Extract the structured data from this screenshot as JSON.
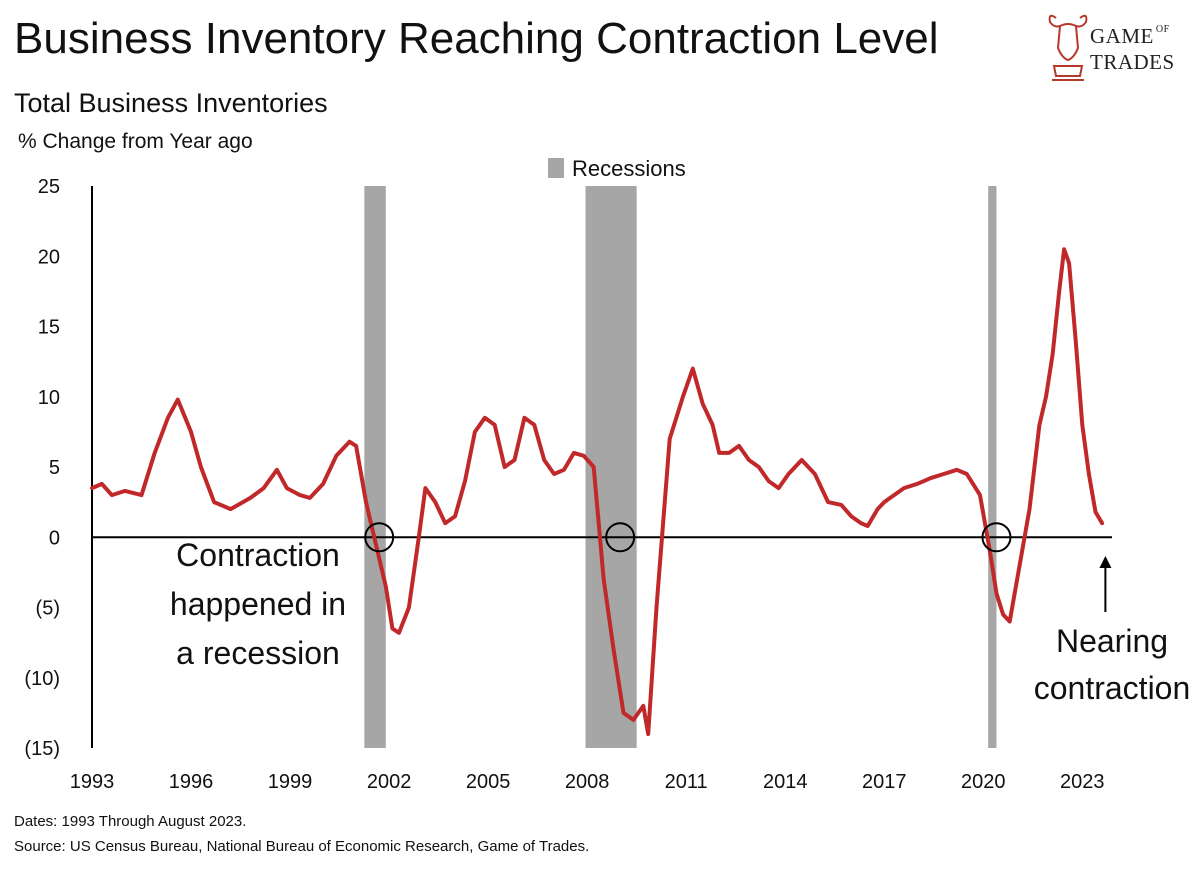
{
  "header": {
    "title": "Business Inventory Reaching Contraction Level",
    "subtitle": "Total Business Inventories",
    "y_unit_label": "% Change from Year ago"
  },
  "brand": {
    "line1": "GAME",
    "of": "OF",
    "line2": "TRADES",
    "color": "#b5382a"
  },
  "footer": {
    "dates": "Dates: 1993 Through August 2023.",
    "source": "Source: US Census Bureau, National Bureau of Economic Research, Game of Trades."
  },
  "colors": {
    "line": "#c0282a",
    "recession": "#a6a6a6",
    "axis": "#000000"
  },
  "chart_data": {
    "type": "line",
    "title": "Total Business Inventories",
    "ylabel": "% Change from Year ago",
    "xlabel": "",
    "xlim": [
      1993,
      2023.9
    ],
    "ylim": [
      -15,
      25
    ],
    "x_ticks": [
      1993,
      1996,
      1999,
      2002,
      2005,
      2008,
      2011,
      2014,
      2017,
      2020,
      2023
    ],
    "x_tick_labels": [
      "1993",
      "1996",
      "1999",
      "2002",
      "2005",
      "2008",
      "2011",
      "2014",
      "2017",
      "2020",
      "2023"
    ],
    "y_ticks": [
      25,
      20,
      15,
      10,
      5,
      0,
      -5,
      -10,
      -15
    ],
    "y_tick_labels": [
      "25",
      "20",
      "15",
      "10",
      "5",
      "0",
      "(5)",
      "(10)",
      "(15)"
    ],
    "legend": {
      "label": "Recessions",
      "position": "top-center"
    },
    "recessions": [
      {
        "start": 2001.25,
        "end": 2001.9
      },
      {
        "start": 2007.95,
        "end": 2009.5
      },
      {
        "start": 2020.15,
        "end": 2020.4
      }
    ],
    "series": [
      {
        "name": "Total Business Inventories % Change YoY",
        "x": [
          1993.0,
          1993.3,
          1993.6,
          1994.0,
          1994.5,
          1994.9,
          1995.3,
          1995.6,
          1996.0,
          1996.3,
          1996.7,
          1997.2,
          1997.8,
          1998.2,
          1998.6,
          1998.9,
          1999.3,
          1999.6,
          2000.0,
          2000.4,
          2000.8,
          2001.0,
          2001.3,
          2001.6,
          2001.9,
          2002.1,
          2002.3,
          2002.6,
          2002.9,
          2003.1,
          2003.4,
          2003.7,
          2004.0,
          2004.3,
          2004.6,
          2004.9,
          2005.2,
          2005.5,
          2005.8,
          2006.1,
          2006.4,
          2006.7,
          2007.0,
          2007.3,
          2007.6,
          2007.9,
          2008.2,
          2008.5,
          2008.8,
          2009.1,
          2009.4,
          2009.7,
          2009.85,
          2010.1,
          2010.5,
          2010.9,
          2011.2,
          2011.5,
          2011.8,
          2012.0,
          2012.3,
          2012.6,
          2012.9,
          2013.2,
          2013.5,
          2013.8,
          2014.1,
          2014.5,
          2014.9,
          2015.3,
          2015.7,
          2016.0,
          2016.3,
          2016.5,
          2016.8,
          2017.0,
          2017.3,
          2017.6,
          2018.0,
          2018.4,
          2018.8,
          2019.2,
          2019.5,
          2019.9,
          2020.2,
          2020.4,
          2020.6,
          2020.8,
          2021.1,
          2021.4,
          2021.7,
          2021.9,
          2022.1,
          2022.3,
          2022.45,
          2022.6,
          2022.8,
          2023.0,
          2023.2,
          2023.4,
          2023.6
        ],
        "values": [
          3.5,
          3.8,
          3.0,
          3.3,
          3.0,
          6.0,
          8.5,
          9.8,
          7.5,
          5.0,
          2.5,
          2.0,
          2.8,
          3.5,
          4.8,
          3.5,
          3.0,
          2.8,
          3.8,
          5.8,
          6.8,
          6.5,
          2.5,
          -0.5,
          -3.5,
          -6.5,
          -6.8,
          -5.0,
          0.0,
          3.5,
          2.5,
          1.0,
          1.5,
          4.0,
          7.5,
          8.5,
          8.0,
          5.0,
          5.5,
          8.5,
          8.0,
          5.5,
          4.5,
          4.8,
          6.0,
          5.8,
          5.0,
          -3.0,
          -8.0,
          -12.5,
          -13.0,
          -12.0,
          -14.0,
          -5.0,
          7.0,
          10.0,
          12.0,
          9.5,
          8.0,
          6.0,
          6.0,
          6.5,
          5.5,
          5.0,
          4.0,
          3.5,
          4.5,
          5.5,
          4.5,
          2.5,
          2.3,
          1.5,
          1.0,
          0.8,
          2.0,
          2.5,
          3.0,
          3.5,
          3.8,
          4.2,
          4.5,
          4.8,
          4.5,
          3.0,
          -1.0,
          -4.0,
          -5.5,
          -6.0,
          -2.0,
          2.0,
          8.0,
          10.0,
          13.0,
          17.5,
          20.5,
          19.5,
          14.0,
          8.0,
          4.5,
          1.8,
          1.0
        ]
      }
    ],
    "annotations": [
      {
        "lines": [
          "Contraction",
          "happened in",
          "a recession"
        ],
        "x": 2001.7,
        "y": 0
      },
      {
        "lines": [
          "Nearing",
          "contraction"
        ],
        "x": 2023.7,
        "y": 0
      }
    ],
    "highlights": [
      {
        "x": 2001.7,
        "y": 0
      },
      {
        "x": 2009.0,
        "y": 0
      },
      {
        "x": 2020.4,
        "y": 0
      }
    ]
  }
}
